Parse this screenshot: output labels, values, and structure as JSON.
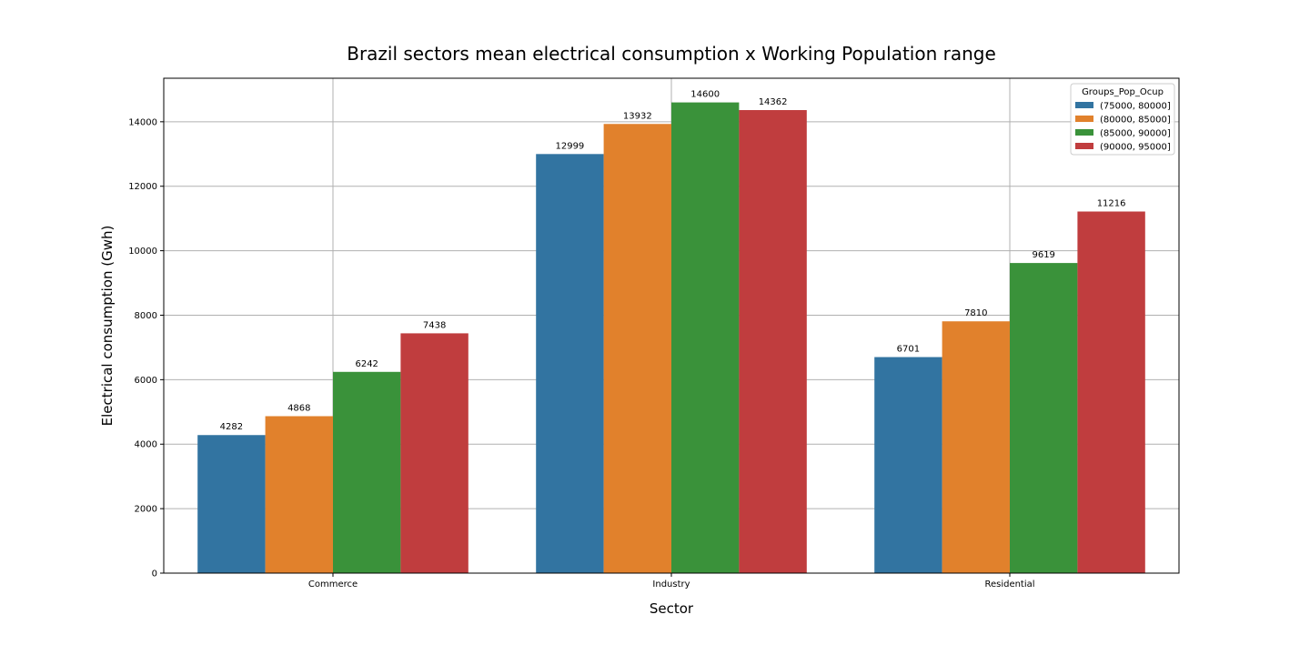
{
  "chart_data": {
    "type": "bar",
    "title": "Brazil sectors mean electrical consumption x Working Population range",
    "xlabel": "Sector",
    "ylabel": "Electrical consumption (Gwh)",
    "categories": [
      "Commerce",
      "Industry",
      "Residential"
    ],
    "ylim": [
      0,
      15350
    ],
    "yticks": [
      0,
      2000,
      4000,
      6000,
      8000,
      10000,
      12000,
      14000
    ],
    "grid": true,
    "legend": {
      "title": "Groups_Pop_Ocup",
      "placement": "top-right"
    },
    "series": [
      {
        "name": "(75000, 80000]",
        "color": "#3274a1",
        "values": [
          4282,
          12999,
          6701
        ]
      },
      {
        "name": "(80000, 85000]",
        "color": "#e1812c",
        "values": [
          4868,
          13932,
          7810
        ]
      },
      {
        "name": "(85000, 90000]",
        "color": "#3a923a",
        "values": [
          6242,
          14600,
          9619
        ]
      },
      {
        "name": "(90000, 95000]",
        "color": "#c03d3e",
        "values": [
          7438,
          14362,
          11216
        ]
      }
    ]
  }
}
